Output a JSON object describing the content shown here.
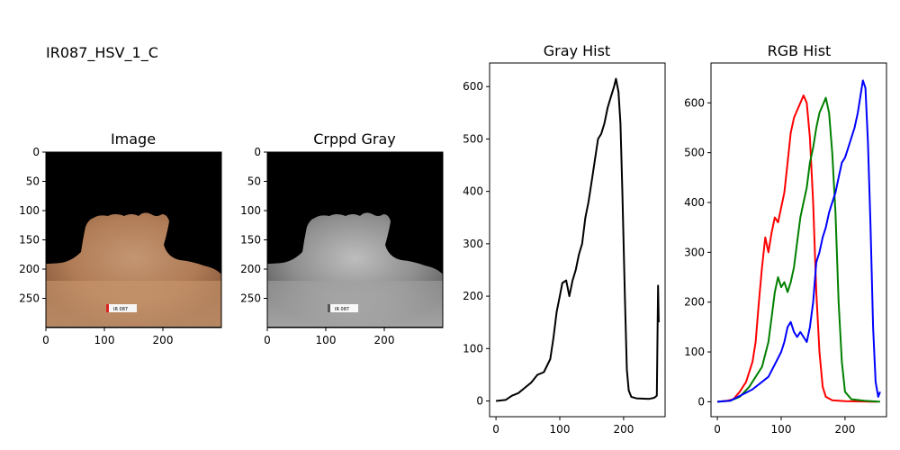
{
  "figure_title": "IR087_HSV_1_C",
  "chart_data": [
    {
      "type": "image",
      "title": "Image",
      "x_ticks": [
        0,
        100,
        200
      ],
      "y_ticks": [
        0,
        50,
        100,
        150,
        200,
        250
      ],
      "xlim": [
        0,
        300
      ],
      "ylim": [
        300,
        0
      ],
      "label_text": "IR 087"
    },
    {
      "type": "image",
      "title": "Crppd Gray",
      "x_ticks": [
        0,
        100,
        200
      ],
      "y_ticks": [
        0,
        50,
        100,
        150,
        200,
        250
      ],
      "xlim": [
        0,
        300
      ],
      "ylim": [
        300,
        0
      ],
      "label_text": "IR 087"
    },
    {
      "type": "line",
      "title": "Gray Hist",
      "xlim": [
        -10,
        265
      ],
      "ylim": [
        -30,
        645
      ],
      "x_ticks": [
        0,
        100,
        200
      ],
      "y_ticks": [
        0,
        100,
        200,
        300,
        400,
        500,
        600
      ],
      "series": [
        {
          "color": "#000000",
          "points": [
            [
              0,
              0
            ],
            [
              15,
              2
            ],
            [
              25,
              10
            ],
            [
              35,
              15
            ],
            [
              45,
              25
            ],
            [
              55,
              35
            ],
            [
              65,
              50
            ],
            [
              75,
              55
            ],
            [
              85,
              80
            ],
            [
              90,
              120
            ],
            [
              95,
              170
            ],
            [
              100,
              200
            ],
            [
              104,
              225
            ],
            [
              110,
              230
            ],
            [
              115,
              200
            ],
            [
              120,
              230
            ],
            [
              125,
              250
            ],
            [
              130,
              280
            ],
            [
              135,
              300
            ],
            [
              140,
              350
            ],
            [
              145,
              380
            ],
            [
              150,
              420
            ],
            [
              155,
              460
            ],
            [
              160,
              500
            ],
            [
              165,
              510
            ],
            [
              170,
              530
            ],
            [
              175,
              560
            ],
            [
              180,
              580
            ],
            [
              185,
              600
            ],
            [
              188,
              615
            ],
            [
              192,
              590
            ],
            [
              195,
              530
            ],
            [
              198,
              400
            ],
            [
              202,
              200
            ],
            [
              205,
              60
            ],
            [
              208,
              20
            ],
            [
              212,
              8
            ],
            [
              220,
              5
            ],
            [
              240,
              4
            ],
            [
              248,
              6
            ],
            [
              252,
              10
            ],
            [
              254,
              220
            ],
            [
              255,
              150
            ]
          ]
        }
      ]
    },
    {
      "type": "line",
      "title": "RGB Hist",
      "xlim": [
        -10,
        265
      ],
      "ylim": [
        -30,
        680
      ],
      "x_ticks": [
        0,
        100,
        200
      ],
      "y_ticks": [
        0,
        100,
        200,
        300,
        400,
        500,
        600
      ],
      "series": [
        {
          "color": "#ff0000",
          "points": [
            [
              0,
              0
            ],
            [
              15,
              2
            ],
            [
              25,
              5
            ],
            [
              35,
              20
            ],
            [
              45,
              40
            ],
            [
              55,
              80
            ],
            [
              60,
              120
            ],
            [
              65,
              200
            ],
            [
              70,
              270
            ],
            [
              75,
              330
            ],
            [
              80,
              300
            ],
            [
              85,
              340
            ],
            [
              90,
              370
            ],
            [
              95,
              360
            ],
            [
              100,
              390
            ],
            [
              105,
              420
            ],
            [
              110,
              480
            ],
            [
              115,
              540
            ],
            [
              120,
              570
            ],
            [
              125,
              585
            ],
            [
              130,
              600
            ],
            [
              135,
              615
            ],
            [
              140,
              600
            ],
            [
              145,
              530
            ],
            [
              150,
              400
            ],
            [
              155,
              220
            ],
            [
              160,
              100
            ],
            [
              165,
              30
            ],
            [
              170,
              10
            ],
            [
              180,
              3
            ],
            [
              200,
              1
            ],
            [
              250,
              0
            ]
          ]
        },
        {
          "color": "#008000",
          "points": [
            [
              0,
              0
            ],
            [
              20,
              2
            ],
            [
              35,
              10
            ],
            [
              50,
              30
            ],
            [
              60,
              50
            ],
            [
              70,
              70
            ],
            [
              80,
              120
            ],
            [
              85,
              170
            ],
            [
              90,
              220
            ],
            [
              95,
              250
            ],
            [
              100,
              230
            ],
            [
              105,
              240
            ],
            [
              110,
              220
            ],
            [
              115,
              240
            ],
            [
              120,
              270
            ],
            [
              125,
              320
            ],
            [
              130,
              370
            ],
            [
              135,
              400
            ],
            [
              140,
              430
            ],
            [
              145,
              480
            ],
            [
              150,
              510
            ],
            [
              155,
              550
            ],
            [
              160,
              580
            ],
            [
              165,
              595
            ],
            [
              170,
              610
            ],
            [
              175,
              580
            ],
            [
              180,
              500
            ],
            [
              185,
              380
            ],
            [
              190,
              200
            ],
            [
              195,
              80
            ],
            [
              200,
              20
            ],
            [
              210,
              5
            ],
            [
              230,
              2
            ],
            [
              255,
              0
            ]
          ]
        },
        {
          "color": "#0000ff",
          "points": [
            [
              0,
              0
            ],
            [
              20,
              2
            ],
            [
              40,
              15
            ],
            [
              55,
              25
            ],
            [
              70,
              40
            ],
            [
              80,
              50
            ],
            [
              90,
              75
            ],
            [
              100,
              100
            ],
            [
              105,
              120
            ],
            [
              110,
              150
            ],
            [
              115,
              160
            ],
            [
              120,
              140
            ],
            [
              125,
              130
            ],
            [
              130,
              140
            ],
            [
              135,
              130
            ],
            [
              140,
              120
            ],
            [
              145,
              150
            ],
            [
              150,
              200
            ],
            [
              155,
              280
            ],
            [
              160,
              300
            ],
            [
              165,
              330
            ],
            [
              170,
              350
            ],
            [
              175,
              380
            ],
            [
              180,
              400
            ],
            [
              185,
              420
            ],
            [
              190,
              450
            ],
            [
              195,
              480
            ],
            [
              200,
              490
            ],
            [
              205,
              510
            ],
            [
              210,
              530
            ],
            [
              215,
              550
            ],
            [
              220,
              580
            ],
            [
              225,
              620
            ],
            [
              228,
              645
            ],
            [
              232,
              630
            ],
            [
              236,
              520
            ],
            [
              240,
              350
            ],
            [
              244,
              150
            ],
            [
              248,
              40
            ],
            [
              252,
              10
            ],
            [
              255,
              20
            ]
          ]
        }
      ]
    }
  ]
}
